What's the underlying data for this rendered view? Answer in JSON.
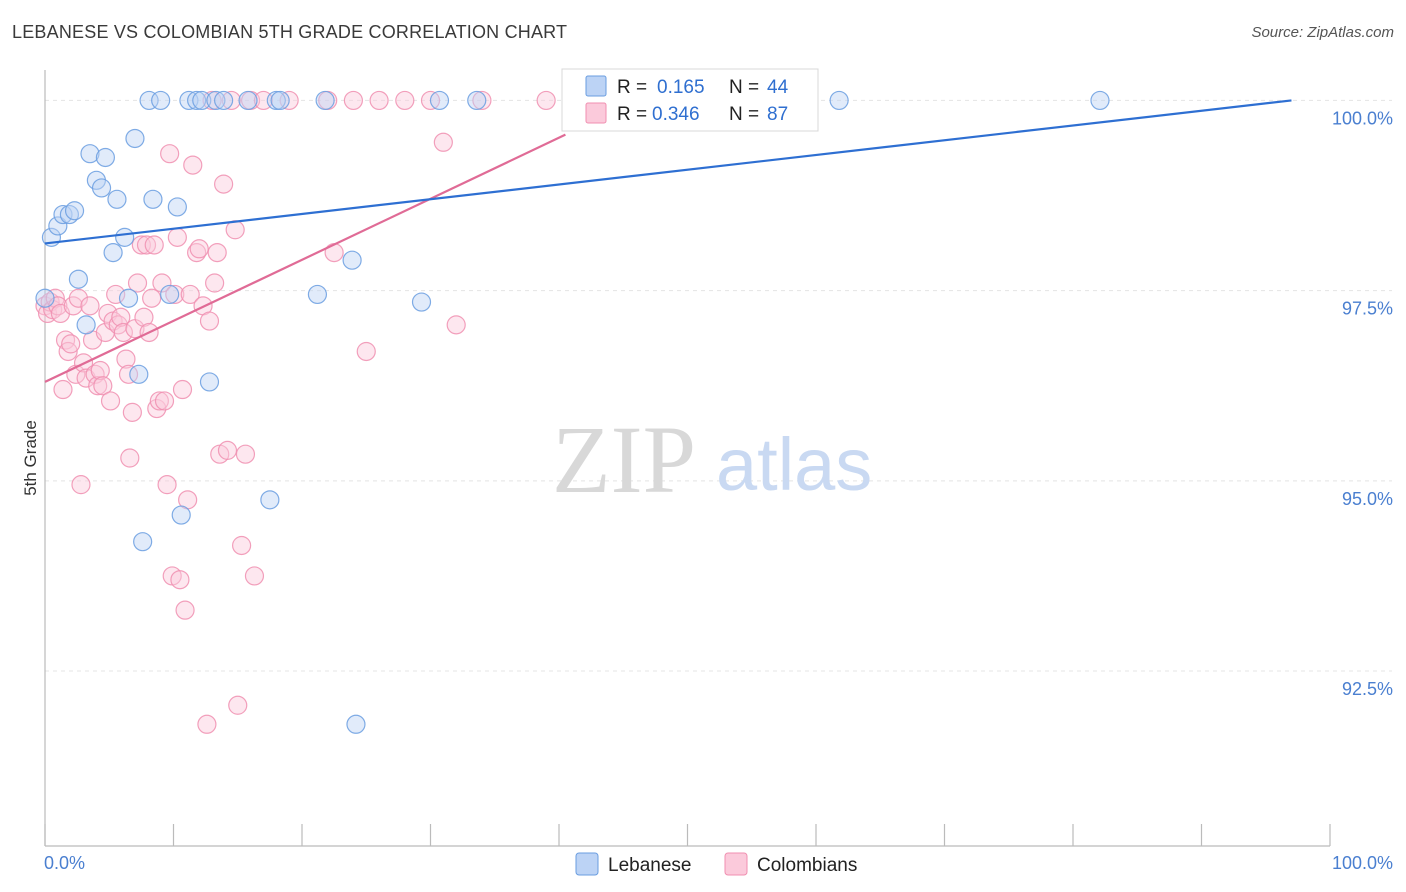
{
  "header": {
    "title": "LEBANESE VS COLOMBIAN 5TH GRADE CORRELATION CHART",
    "source": "Source: ZipAtlas.com"
  },
  "watermark": {
    "zip": "ZIP",
    "atlas": "atlas"
  },
  "legend_top": {
    "r_label": "R =",
    "n_label": "N =",
    "lebanese": {
      "r": "0.165",
      "n": "44"
    },
    "colombians": {
      "r": "0.346",
      "n": "87"
    }
  },
  "chart_data": {
    "type": "scatter",
    "title": "LEBANESE VS COLOMBIAN 5TH GRADE CORRELATION CHART",
    "xlabel": "",
    "ylabel": "5th Grade",
    "xlim": [
      0,
      100
    ],
    "ylim": [
      90.2,
      100.4
    ],
    "x_tick_labels": [
      "0.0%",
      "100.0%"
    ],
    "y_ticks": [
      {
        "value": 100.0,
        "label": "100.0%"
      },
      {
        "value": 97.5,
        "label": "97.5%"
      },
      {
        "value": 95.0,
        "label": "95.0%"
      },
      {
        "value": 92.5,
        "label": "92.5%"
      }
    ],
    "grid": true,
    "legend_position": "bottom",
    "colors": {
      "lebanese": "#6a9de0",
      "colombians": "#f08fb0",
      "lebanese_line": "#2e6fd2",
      "colombians_line": "#e06b96"
    },
    "series": [
      {
        "name": "Lebanese",
        "r": 0.165,
        "n": 44,
        "trend": {
          "x": [
            0,
            97
          ],
          "y": [
            98.12,
            100.0
          ]
        },
        "points": [
          [
            0.0,
            97.4
          ],
          [
            0.5,
            98.2
          ],
          [
            1.0,
            98.35
          ],
          [
            1.4,
            98.5
          ],
          [
            1.9,
            98.5
          ],
          [
            2.3,
            98.55
          ],
          [
            2.6,
            97.65
          ],
          [
            3.2,
            97.05
          ],
          [
            3.5,
            99.3
          ],
          [
            4.0,
            98.95
          ],
          [
            4.4,
            98.85
          ],
          [
            4.7,
            99.25
          ],
          [
            5.3,
            98.0
          ],
          [
            5.6,
            98.7
          ],
          [
            6.2,
            98.2
          ],
          [
            6.5,
            97.4
          ],
          [
            7.0,
            99.5
          ],
          [
            7.3,
            96.4
          ],
          [
            7.6,
            94.2
          ],
          [
            8.1,
            100.0
          ],
          [
            8.4,
            98.7
          ],
          [
            9.0,
            100.0
          ],
          [
            9.7,
            97.45
          ],
          [
            10.3,
            98.6
          ],
          [
            10.6,
            94.55
          ],
          [
            11.2,
            100.0
          ],
          [
            11.8,
            100.0
          ],
          [
            12.2,
            100.0
          ],
          [
            12.8,
            96.3
          ],
          [
            13.3,
            100.0
          ],
          [
            13.9,
            100.0
          ],
          [
            15.8,
            100.0
          ],
          [
            17.5,
            94.75
          ],
          [
            18.0,
            100.0
          ],
          [
            18.3,
            100.0
          ],
          [
            21.2,
            97.45
          ],
          [
            21.8,
            100.0
          ],
          [
            23.9,
            97.9
          ],
          [
            24.2,
            91.8
          ],
          [
            29.3,
            97.35
          ],
          [
            30.7,
            100.0
          ],
          [
            33.6,
            100.0
          ],
          [
            61.8,
            100.0
          ],
          [
            82.1,
            100.0
          ]
        ]
      },
      {
        "name": "Colombians",
        "r": 0.346,
        "n": 87,
        "trend": {
          "x": [
            0,
            40.5
          ],
          "y": [
            96.3,
            99.55
          ]
        },
        "points": [
          [
            0.0,
            97.3
          ],
          [
            0.2,
            97.2
          ],
          [
            0.4,
            97.35
          ],
          [
            0.6,
            97.25
          ],
          [
            0.8,
            97.4
          ],
          [
            1.0,
            97.3
          ],
          [
            1.2,
            97.2
          ],
          [
            1.4,
            96.2
          ],
          [
            1.6,
            96.85
          ],
          [
            1.8,
            96.7
          ],
          [
            2.0,
            96.8
          ],
          [
            2.2,
            97.3
          ],
          [
            2.4,
            96.4
          ],
          [
            2.6,
            97.4
          ],
          [
            2.8,
            94.95
          ],
          [
            3.0,
            96.55
          ],
          [
            3.2,
            96.35
          ],
          [
            3.5,
            97.3
          ],
          [
            3.7,
            96.85
          ],
          [
            3.9,
            96.4
          ],
          [
            4.1,
            96.25
          ],
          [
            4.3,
            96.45
          ],
          [
            4.5,
            96.25
          ],
          [
            4.7,
            96.95
          ],
          [
            4.9,
            97.2
          ],
          [
            5.1,
            96.05
          ],
          [
            5.3,
            97.1
          ],
          [
            5.5,
            97.45
          ],
          [
            5.7,
            97.05
          ],
          [
            5.9,
            97.15
          ],
          [
            6.1,
            96.95
          ],
          [
            6.3,
            96.6
          ],
          [
            6.5,
            96.4
          ],
          [
            6.6,
            95.3
          ],
          [
            6.8,
            95.9
          ],
          [
            7.0,
            97.0
          ],
          [
            7.2,
            97.6
          ],
          [
            7.5,
            98.1
          ],
          [
            7.7,
            97.15
          ],
          [
            7.9,
            98.1
          ],
          [
            8.1,
            96.95
          ],
          [
            8.3,
            97.4
          ],
          [
            8.5,
            98.1
          ],
          [
            8.7,
            95.95
          ],
          [
            8.9,
            96.05
          ],
          [
            9.1,
            97.6
          ],
          [
            9.3,
            96.05
          ],
          [
            9.5,
            94.95
          ],
          [
            9.7,
            99.3
          ],
          [
            9.9,
            93.75
          ],
          [
            10.1,
            97.45
          ],
          [
            10.3,
            98.2
          ],
          [
            10.5,
            93.7
          ],
          [
            10.7,
            96.2
          ],
          [
            10.9,
            93.3
          ],
          [
            11.1,
            94.75
          ],
          [
            11.3,
            97.45
          ],
          [
            11.5,
            99.15
          ],
          [
            11.8,
            98.0
          ],
          [
            12.0,
            98.05
          ],
          [
            12.3,
            97.3
          ],
          [
            12.6,
            91.8
          ],
          [
            12.8,
            97.1
          ],
          [
            13.0,
            100.0
          ],
          [
            13.2,
            97.6
          ],
          [
            13.4,
            98.0
          ],
          [
            13.6,
            95.35
          ],
          [
            13.9,
            98.9
          ],
          [
            14.2,
            95.4
          ],
          [
            14.5,
            100.0
          ],
          [
            14.8,
            98.3
          ],
          [
            15.0,
            92.05
          ],
          [
            15.3,
            94.15
          ],
          [
            15.6,
            95.35
          ],
          [
            16.0,
            100.0
          ],
          [
            16.3,
            93.75
          ],
          [
            17.0,
            100.0
          ],
          [
            19.0,
            100.0
          ],
          [
            22.0,
            100.0
          ],
          [
            22.5,
            98.0
          ],
          [
            24.0,
            100.0
          ],
          [
            25.0,
            96.7
          ],
          [
            26.0,
            100.0
          ],
          [
            28.0,
            100.0
          ],
          [
            30.0,
            100.0
          ],
          [
            31.0,
            99.45
          ],
          [
            32.0,
            97.05
          ],
          [
            34.0,
            100.0
          ],
          [
            39.0,
            100.0
          ]
        ]
      }
    ]
  },
  "legend_bottom": {
    "lebanese": "Lebanese",
    "colombians": "Colombians"
  }
}
